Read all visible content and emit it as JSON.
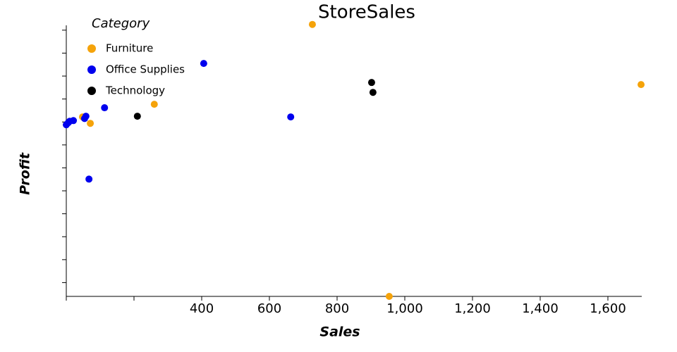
{
  "chart_data": {
    "type": "scatter",
    "title": "StoreSales",
    "x_label": "Sales",
    "y_label": "Profit",
    "legend_title": "Category",
    "legend_position": "top-left",
    "xlim": [
      0,
      1700
    ],
    "ylim": [
      -760,
      421
    ],
    "xticks": [
      {
        "value": 0,
        "label": null
      },
      {
        "value": 200,
        "label": null
      },
      {
        "value": 400,
        "label": "400"
      },
      {
        "value": 600,
        "label": "600"
      },
      {
        "value": 800,
        "label": "800"
      },
      {
        "value": 1000,
        "label": "1,000"
      },
      {
        "value": 1200,
        "label": "1,200"
      },
      {
        "value": 1400,
        "label": "1,400"
      },
      {
        "value": 1600,
        "label": "1,600"
      }
    ],
    "yticks": [
      {
        "value": -700,
        "label": null
      },
      {
        "value": -600,
        "label": null
      },
      {
        "value": -500,
        "label": null
      },
      {
        "value": -400,
        "label": null
      },
      {
        "value": -300,
        "label": null
      },
      {
        "value": -200,
        "label": null
      },
      {
        "value": -100,
        "label": null
      },
      {
        "value": 0,
        "label": null
      },
      {
        "value": 100,
        "label": null
      },
      {
        "value": 200,
        "label": null
      },
      {
        "value": 300,
        "label": null
      },
      {
        "value": 400,
        "label": null
      }
    ],
    "series": [
      {
        "name": "Furniture",
        "color": "#f5a30a",
        "x": [
          727,
          1698,
          260,
          71,
          48,
          954
        ],
        "values": [
          425,
          163,
          77,
          -6,
          22,
          -760
        ]
      },
      {
        "name": "Office Supplies",
        "color": "#0000ee",
        "x": [
          406,
          663,
          113,
          58,
          54,
          67,
          21,
          10,
          0,
          6
        ],
        "values": [
          255,
          22,
          62,
          25,
          15,
          -249,
          6,
          3,
          -12,
          -3
        ]
      },
      {
        "name": "Technology",
        "color": "#000000",
        "x": [
          902,
          906,
          210
        ],
        "values": [
          172,
          129,
          25
        ]
      }
    ]
  }
}
